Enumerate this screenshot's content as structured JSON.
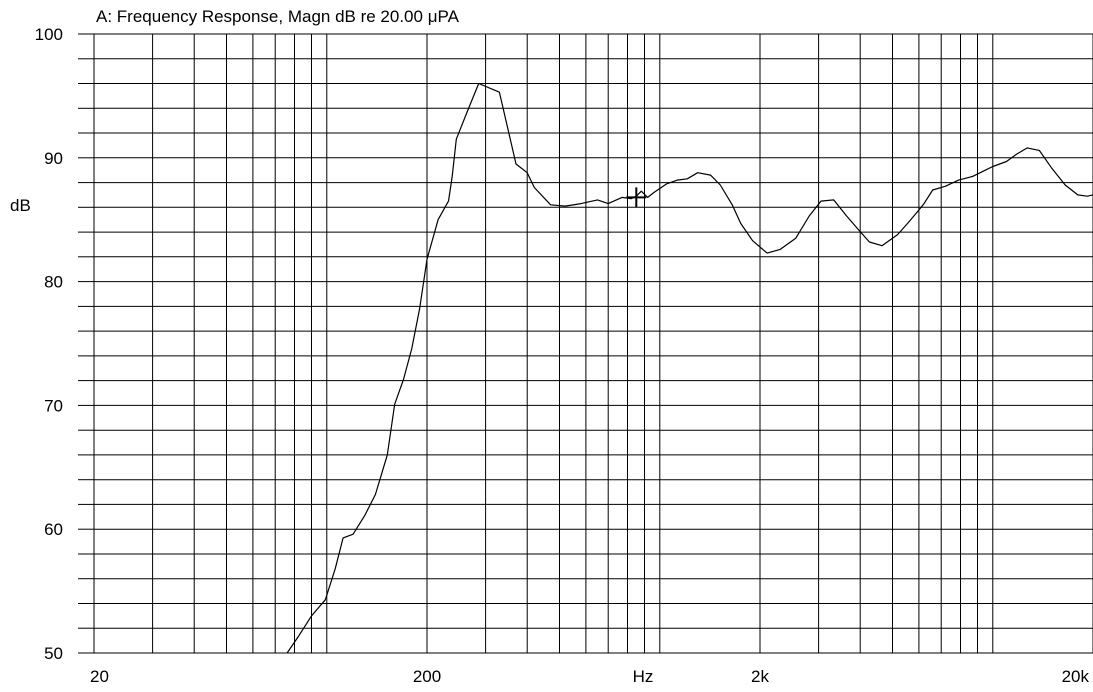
{
  "chart_data": {
    "type": "line",
    "title": "A: Frequency Response, Magn dB re 20.00 μPA",
    "xlabel": "Hz",
    "ylabel": "dB",
    "xscale": "log",
    "xlim": [
      20,
      20000
    ],
    "ylim": [
      50,
      100
    ],
    "grid": true,
    "y_ticks": [
      {
        "value": 50,
        "label": "50"
      },
      {
        "value": 60,
        "label": "60"
      },
      {
        "value": 70,
        "label": "70"
      },
      {
        "value": 80,
        "label": "80"
      },
      {
        "value": 90,
        "label": "90"
      },
      {
        "value": 100,
        "label": "100"
      }
    ],
    "x_ticks": [
      {
        "value": 20,
        "label": "20"
      },
      {
        "value": 200,
        "label": "200"
      },
      {
        "value": 2000,
        "label": "2k"
      },
      {
        "value": 20000,
        "label": "20k"
      }
    ],
    "cursor_marker": {
      "x": 850,
      "y": 86.8
    },
    "series": [
      {
        "color": "#000000",
        "x": [
          76,
          82,
          90,
          99,
          106,
          112,
          120,
          130,
          140,
          152,
          160,
          170,
          180,
          190,
          200,
          216,
          232,
          238,
          245,
          262,
          286,
          330,
          370,
          400,
          420,
          470,
          520,
          580,
          650,
          700,
          770,
          820,
          850,
          880,
          920,
          960,
          1050,
          1130,
          1210,
          1300,
          1420,
          1520,
          1650,
          1750,
          1900,
          2100,
          2300,
          2560,
          2810,
          3050,
          3330,
          3640,
          3950,
          4260,
          4650,
          5180,
          5550,
          5880,
          6180,
          6600,
          7200,
          7900,
          8700,
          9500,
          10000,
          11000,
          11800,
          12700,
          13800,
          15000,
          16500,
          18000,
          19200,
          20000
        ],
        "y": [
          50.0,
          51.3,
          53.0,
          54.3,
          56.8,
          59.3,
          59.6,
          61.1,
          62.8,
          66.0,
          70.1,
          72.1,
          74.6,
          77.8,
          81.8,
          85.0,
          86.5,
          88.5,
          91.5,
          93.5,
          96.0,
          95.3,
          89.5,
          88.8,
          87.6,
          86.2,
          86.1,
          86.3,
          86.6,
          86.3,
          86.8,
          86.7,
          86.9,
          87.3,
          86.8,
          87.2,
          87.9,
          88.2,
          88.3,
          88.8,
          88.6,
          87.8,
          86.2,
          84.7,
          83.3,
          82.3,
          82.6,
          83.5,
          85.3,
          86.5,
          86.6,
          85.3,
          84.2,
          83.2,
          82.9,
          83.8,
          84.7,
          85.5,
          86.2,
          87.4,
          87.7,
          88.2,
          88.5,
          89.0,
          89.3,
          89.7,
          90.3,
          90.8,
          90.6,
          89.2,
          87.8,
          87.0,
          86.9,
          87.0
        ]
      }
    ]
  }
}
